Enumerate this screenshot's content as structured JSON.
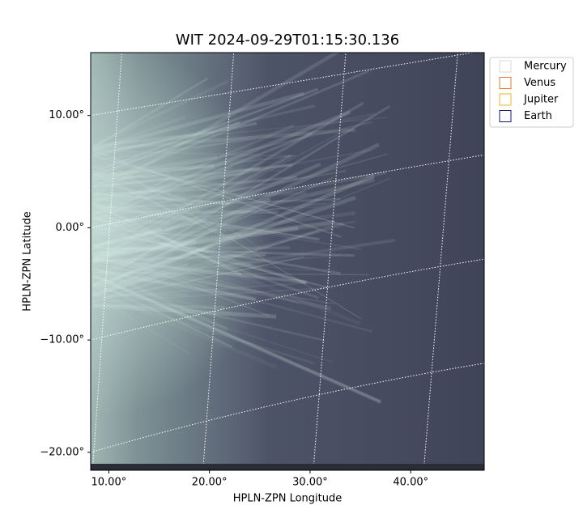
{
  "chart_data": {
    "type": "image",
    "title": "WIT 2024-09-29T01:15:30.136",
    "x_label": "HPLN-ZPN Longitude",
    "y_label": "HPLN-ZPN Latitude",
    "xlim": [
      8.2,
      47.3
    ],
    "ylim": [
      -21.6,
      15.6
    ],
    "xticks": [
      {
        "value": 10,
        "label": "10.00°"
      },
      {
        "value": 20,
        "label": "20.00°"
      },
      {
        "value": 30,
        "label": "30.00°"
      },
      {
        "value": 40,
        "label": "40.00°"
      }
    ],
    "yticks": [
      {
        "value": 10,
        "label": "10.00°"
      },
      {
        "value": 0,
        "label": "0.00°"
      },
      {
        "value": -10,
        "label": "−10.00°"
      },
      {
        "value": -20,
        "label": "−20.00°"
      }
    ],
    "grid": true,
    "legend_position": "upper-right-outside",
    "series": [
      {
        "name": "Mercury",
        "color": "#d9d9d9"
      },
      {
        "name": "Venus",
        "color": "#e07b39"
      },
      {
        "name": "Jupiter",
        "color": "#e8b42a"
      },
      {
        "name": "Earth",
        "color": "#1a1a7a"
      }
    ]
  }
}
